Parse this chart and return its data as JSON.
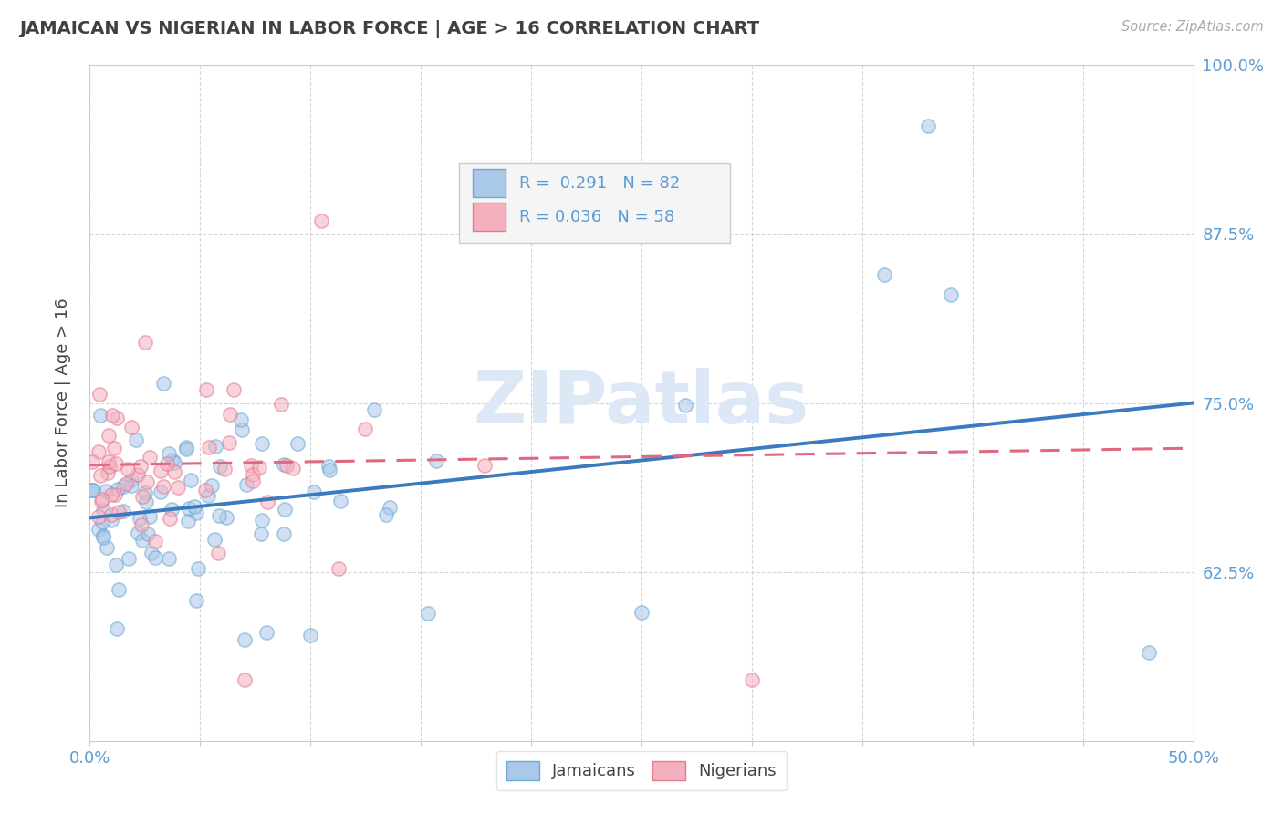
{
  "title": "JAMAICAN VS NIGERIAN IN LABOR FORCE | AGE > 16 CORRELATION CHART",
  "source_text": "Source: ZipAtlas.com",
  "ylabel": "In Labor Force | Age > 16",
  "xlim": [
    0.0,
    0.5
  ],
  "ylim": [
    0.5,
    1.0
  ],
  "jamaican_R": 0.291,
  "jamaican_N": 82,
  "nigerian_R": 0.036,
  "nigerian_N": 58,
  "jamaican_face_color": "#aac8e8",
  "nigerian_face_color": "#f5b0c0",
  "jamaican_edge_color": "#6aaad4",
  "nigerian_edge_color": "#e87890",
  "jamaican_line_color": "#3a7abf",
  "nigerian_line_color": "#e06880",
  "legend_text_color": "#5b9bd5",
  "axis_label_color": "#5b9bd5",
  "background_color": "#ffffff",
  "grid_color": "#cccccc",
  "title_color": "#404040",
  "watermark_color": "#dce8f5",
  "watermark_text": "ZIPatlas",
  "source_color": "#aaaaaa",
  "ylabel_color": "#444444",
  "scatter_size": 120,
  "scatter_alpha": 0.55,
  "scatter_linewidth": 1.2
}
